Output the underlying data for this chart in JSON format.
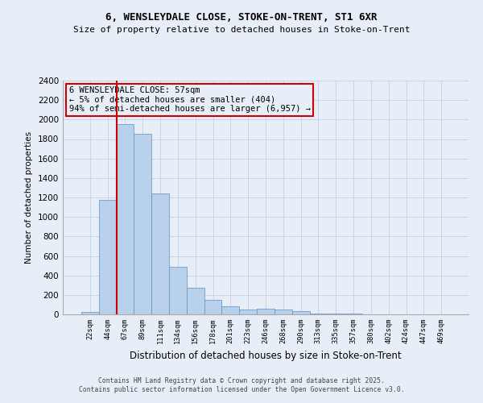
{
  "title": "6, WENSLEYDALE CLOSE, STOKE-ON-TRENT, ST1 6XR",
  "subtitle": "Size of property relative to detached houses in Stoke-on-Trent",
  "xlabel": "Distribution of detached houses by size in Stoke-on-Trent",
  "ylabel": "Number of detached properties",
  "footer_line1": "Contains HM Land Registry data © Crown copyright and database right 2025.",
  "footer_line2": "Contains public sector information licensed under the Open Government Licence v3.0.",
  "annotation_title": "6 WENSLEYDALE CLOSE: 57sqm",
  "annotation_line1": "← 5% of detached houses are smaller (404)",
  "annotation_line2": "94% of semi-detached houses are larger (6,957) →",
  "bar_color": "#b8d0ea",
  "bar_edge_color": "#6090c0",
  "grid_color": "#c8d4e8",
  "bg_color": "#e8eef8",
  "red_line_color": "#cc0000",
  "ylim": [
    0,
    2400
  ],
  "yticks": [
    0,
    200,
    400,
    600,
    800,
    1000,
    1200,
    1400,
    1600,
    1800,
    2000,
    2200,
    2400
  ],
  "bin_labels": [
    "22sqm",
    "44sqm",
    "67sqm",
    "89sqm",
    "111sqm",
    "134sqm",
    "156sqm",
    "178sqm",
    "201sqm",
    "223sqm",
    "246sqm",
    "268sqm",
    "290sqm",
    "313sqm",
    "335sqm",
    "357sqm",
    "380sqm",
    "402sqm",
    "424sqm",
    "447sqm",
    "469sqm"
  ],
  "bar_values": [
    25,
    1175,
    1950,
    1850,
    1240,
    490,
    270,
    145,
    80,
    50,
    55,
    50,
    35,
    10,
    8,
    5,
    4,
    3,
    2,
    1,
    1
  ],
  "red_line_x": 1.5,
  "property_size": 57
}
